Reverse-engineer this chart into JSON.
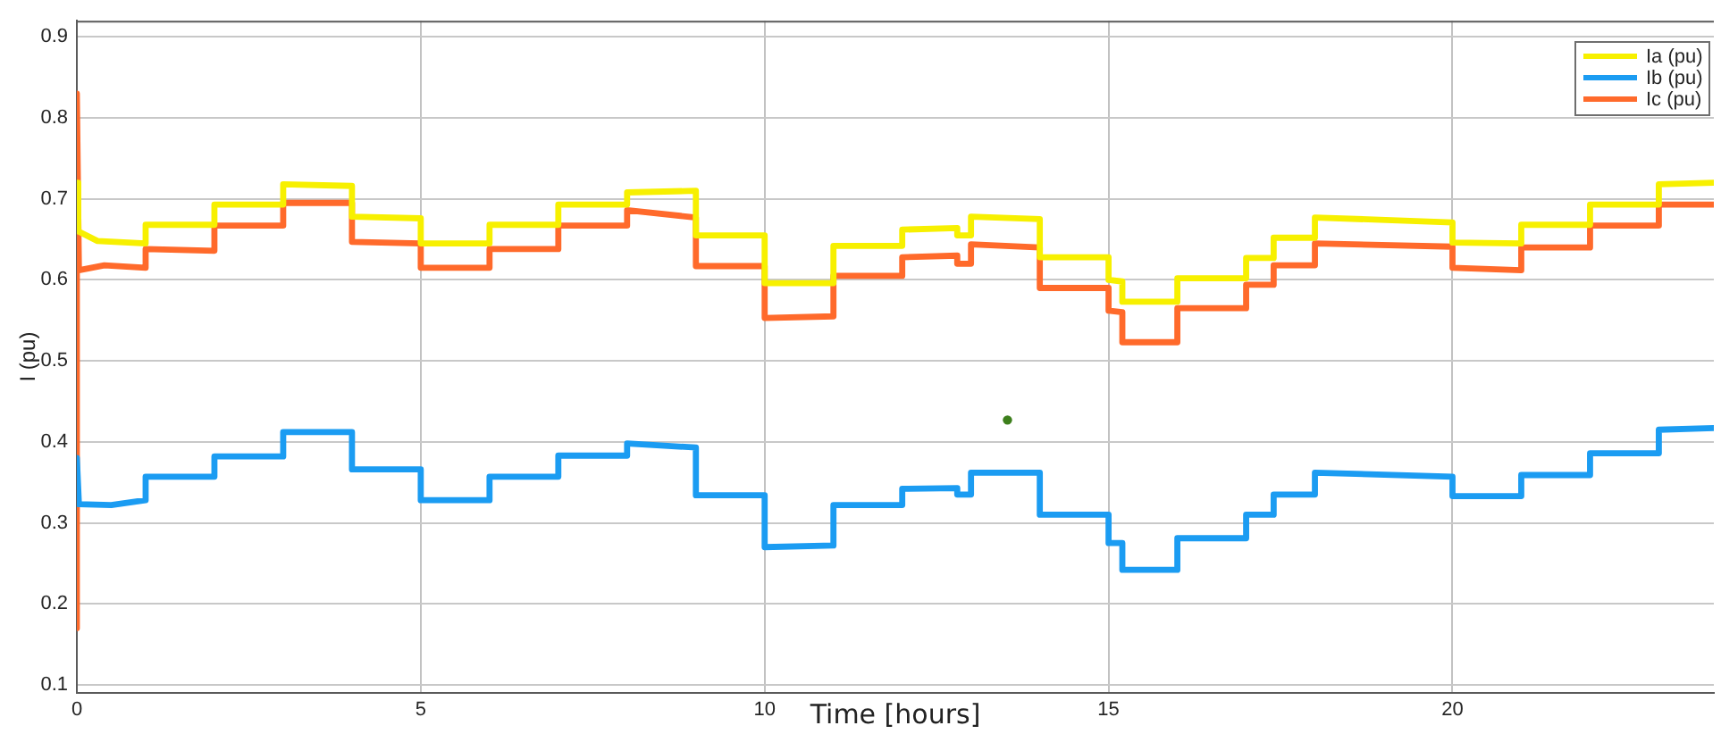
{
  "chart_data": {
    "type": "line",
    "xlabel": "Time [hours]",
    "ylabel": "I (pu)",
    "xlim": [
      0,
      23.8
    ],
    "xticks": [
      0,
      5,
      10,
      15,
      20
    ],
    "ylim": [
      0.09,
      0.92
    ],
    "yticks": [
      0.1,
      0.2,
      0.3,
      0.4,
      0.5,
      0.6,
      0.7,
      0.8,
      0.9
    ],
    "grid": true,
    "legend": "top right",
    "series": [
      {
        "name": "Ia (pu)",
        "color": "#f7f000",
        "x": [
          0,
          0.02,
          0.3,
          1,
          1,
          2,
          2,
          3,
          3,
          4,
          4,
          5,
          5,
          6,
          6,
          7,
          7,
          8,
          8,
          9,
          9,
          10,
          10,
          11,
          11,
          12,
          12,
          12.8,
          12.8,
          13,
          13,
          14,
          14,
          15,
          15,
          15.2,
          15.2,
          16,
          16,
          17,
          17,
          17.4,
          17.4,
          18,
          18,
          20,
          20,
          21,
          21,
          22,
          22,
          23,
          23,
          23.8
        ],
        "values": [
          0.72,
          0.66,
          0.648,
          0.645,
          0.668,
          0.668,
          0.693,
          0.693,
          0.718,
          0.716,
          0.678,
          0.676,
          0.645,
          0.645,
          0.668,
          0.668,
          0.693,
          0.693,
          0.708,
          0.71,
          0.655,
          0.655,
          0.596,
          0.596,
          0.642,
          0.642,
          0.662,
          0.664,
          0.655,
          0.655,
          0.678,
          0.675,
          0.628,
          0.628,
          0.6,
          0.598,
          0.573,
          0.573,
          0.602,
          0.602,
          0.627,
          0.627,
          0.652,
          0.652,
          0.677,
          0.671,
          0.646,
          0.645,
          0.668,
          0.668,
          0.693,
          0.693,
          0.718,
          0.72
        ]
      },
      {
        "name": "Ib (pu)",
        "color": "#1b9cf2",
        "x": [
          0,
          0.03,
          0.5,
          1,
          1,
          2,
          2,
          3,
          3,
          4,
          4,
          5,
          5,
          6,
          6,
          7,
          7,
          8,
          8,
          9,
          9,
          10,
          10,
          11,
          11,
          12,
          12,
          12.8,
          12.8,
          13,
          13,
          14,
          14,
          15,
          15,
          15.2,
          15.2,
          16,
          16,
          17,
          17,
          17.4,
          17.4,
          18,
          18,
          20,
          20,
          21,
          21,
          22,
          22,
          23,
          23,
          23.8
        ],
        "values": [
          0.38,
          0.323,
          0.322,
          0.328,
          0.357,
          0.357,
          0.382,
          0.382,
          0.412,
          0.412,
          0.366,
          0.366,
          0.328,
          0.328,
          0.357,
          0.357,
          0.383,
          0.383,
          0.398,
          0.393,
          0.334,
          0.334,
          0.27,
          0.272,
          0.322,
          0.322,
          0.342,
          0.343,
          0.335,
          0.335,
          0.362,
          0.362,
          0.31,
          0.31,
          0.275,
          0.275,
          0.242,
          0.242,
          0.281,
          0.281,
          0.31,
          0.31,
          0.335,
          0.335,
          0.362,
          0.357,
          0.333,
          0.333,
          0.359,
          0.359,
          0.386,
          0.386,
          0.415,
          0.417
        ]
      },
      {
        "name": "Ic (pu)",
        "color": "#ff6a2b",
        "x": [
          0,
          0,
          0.03,
          0.4,
          1,
          1,
          2,
          2,
          3,
          3,
          4,
          4,
          5,
          5,
          6,
          6,
          7,
          7,
          8,
          8,
          9,
          9,
          10,
          10,
          11,
          11,
          12,
          12,
          12.8,
          12.8,
          13,
          13,
          14,
          14,
          15,
          15,
          15.2,
          15.2,
          16,
          16,
          17,
          17,
          17.4,
          17.4,
          18,
          18,
          20,
          20,
          21,
          21,
          22,
          22,
          23,
          23,
          23.8
        ],
        "values": [
          0.17,
          0.83,
          0.612,
          0.618,
          0.615,
          0.638,
          0.636,
          0.667,
          0.667,
          0.695,
          0.695,
          0.647,
          0.645,
          0.615,
          0.615,
          0.638,
          0.638,
          0.667,
          0.667,
          0.686,
          0.677,
          0.617,
          0.617,
          0.553,
          0.555,
          0.605,
          0.605,
          0.628,
          0.63,
          0.62,
          0.62,
          0.644,
          0.64,
          0.59,
          0.59,
          0.562,
          0.56,
          0.523,
          0.523,
          0.565,
          0.565,
          0.594,
          0.594,
          0.618,
          0.618,
          0.645,
          0.641,
          0.615,
          0.612,
          0.64,
          0.64,
          0.667,
          0.667,
          0.693,
          0.693
        ]
      },
      {
        "type": "scatter",
        "color": "#3d7f1c",
        "marker": "circle",
        "x": [
          13.53
        ],
        "values": [
          0.427
        ]
      }
    ]
  }
}
